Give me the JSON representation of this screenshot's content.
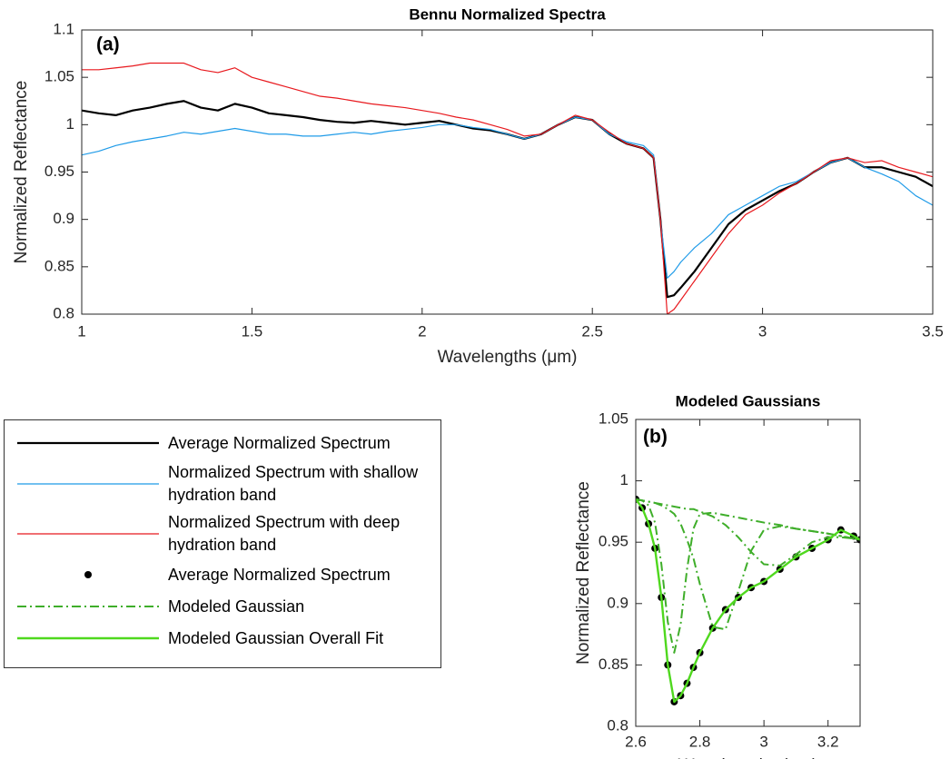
{
  "chart_data": [
    {
      "type": "line",
      "title": "Bennu Normalized Spectra",
      "annotation": "(a)",
      "x_label": "Wavelengths (μm)",
      "y_label": "Normalized Reflectance",
      "xlim": [
        1,
        3.5
      ],
      "ylim": [
        0.8,
        1.1
      ],
      "xticks": [
        1,
        1.5,
        2,
        2.5,
        3,
        3.5
      ],
      "yticks": [
        0.8,
        0.85,
        0.9,
        0.95,
        1,
        1.05,
        1.1
      ],
      "x": [
        1.0,
        1.05,
        1.1,
        1.15,
        1.2,
        1.25,
        1.3,
        1.35,
        1.4,
        1.45,
        1.5,
        1.55,
        1.6,
        1.65,
        1.7,
        1.75,
        1.8,
        1.85,
        1.9,
        1.95,
        2.0,
        2.05,
        2.1,
        2.15,
        2.2,
        2.25,
        2.3,
        2.35,
        2.4,
        2.45,
        2.5,
        2.55,
        2.6,
        2.65,
        2.68,
        2.7,
        2.72,
        2.74,
        2.76,
        2.8,
        2.85,
        2.9,
        2.95,
        3.0,
        3.05,
        3.1,
        3.15,
        3.2,
        3.25,
        3.3,
        3.35,
        3.4,
        3.45,
        3.5
      ],
      "series": [
        {
          "name": "Average Normalized Spectrum",
          "color": "#000000",
          "style": "line",
          "width": 2.2,
          "values": [
            1.015,
            1.012,
            1.01,
            1.015,
            1.018,
            1.022,
            1.025,
            1.018,
            1.015,
            1.022,
            1.018,
            1.012,
            1.01,
            1.008,
            1.005,
            1.003,
            1.002,
            1.004,
            1.002,
            1.0,
            1.002,
            1.004,
            1.0,
            0.996,
            0.994,
            0.99,
            0.985,
            0.99,
            1.0,
            1.008,
            1.005,
            0.99,
            0.98,
            0.975,
            0.965,
            0.9,
            0.818,
            0.82,
            0.828,
            0.845,
            0.87,
            0.895,
            0.91,
            0.92,
            0.93,
            0.938,
            0.95,
            0.96,
            0.965,
            0.955,
            0.955,
            0.95,
            0.945,
            0.935
          ]
        },
        {
          "name": "Normalized Spectrum with shallow hydration band",
          "color": "#1f9be8",
          "style": "line",
          "width": 1.2,
          "values": [
            0.968,
            0.972,
            0.978,
            0.982,
            0.985,
            0.988,
            0.992,
            0.99,
            0.993,
            0.996,
            0.993,
            0.99,
            0.99,
            0.988,
            0.988,
            0.99,
            0.992,
            0.99,
            0.993,
            0.995,
            0.997,
            1.0,
            1.0,
            0.997,
            0.995,
            0.99,
            0.985,
            0.99,
            1.0,
            1.008,
            1.005,
            0.99,
            0.982,
            0.978,
            0.968,
            0.9,
            0.838,
            0.845,
            0.855,
            0.87,
            0.885,
            0.905,
            0.915,
            0.925,
            0.935,
            0.94,
            0.95,
            0.96,
            0.965,
            0.955,
            0.948,
            0.94,
            0.925,
            0.915
          ]
        },
        {
          "name": "Normalized Spectrum with deep hydration band",
          "color": "#e8191e",
          "style": "line",
          "width": 1.2,
          "values": [
            1.058,
            1.058,
            1.06,
            1.062,
            1.065,
            1.065,
            1.065,
            1.058,
            1.055,
            1.06,
            1.05,
            1.045,
            1.04,
            1.035,
            1.03,
            1.028,
            1.025,
            1.022,
            1.02,
            1.018,
            1.015,
            1.012,
            1.008,
            1.005,
            1.0,
            0.995,
            0.988,
            0.99,
            1.0,
            1.01,
            1.005,
            0.992,
            0.98,
            0.975,
            0.965,
            0.9,
            0.8,
            0.805,
            0.815,
            0.835,
            0.86,
            0.885,
            0.905,
            0.915,
            0.928,
            0.938,
            0.95,
            0.962,
            0.965,
            0.96,
            0.962,
            0.955,
            0.95,
            0.945
          ]
        }
      ]
    },
    {
      "type": "line",
      "title": "Modeled Gaussians",
      "annotation": "(b)",
      "x_label": "Wavelengths (μm)",
      "y_label": "Normalized Reflectance",
      "xlim": [
        2.6,
        3.3
      ],
      "ylim": [
        0.8,
        1.05
      ],
      "xticks": [
        2.6,
        2.8,
        3,
        3.2
      ],
      "yticks": [
        0.8,
        0.85,
        0.9,
        0.95,
        1,
        1.05
      ],
      "x": [
        2.6,
        2.62,
        2.64,
        2.66,
        2.68,
        2.7,
        2.72,
        2.74,
        2.76,
        2.78,
        2.8,
        2.84,
        2.88,
        2.92,
        2.96,
        3.0,
        3.05,
        3.1,
        3.15,
        3.2,
        3.24,
        3.28,
        3.3
      ],
      "series": [
        {
          "name": "Average Normalized Spectrum",
          "color": "#000000",
          "style": "dots",
          "values": [
            0.985,
            0.978,
            0.965,
            0.945,
            0.905,
            0.85,
            0.82,
            0.825,
            0.835,
            0.848,
            0.86,
            0.88,
            0.895,
            0.905,
            0.913,
            0.918,
            0.928,
            0.938,
            0.945,
            0.952,
            0.96,
            0.955,
            0.952
          ]
        },
        {
          "name": "Modeled Gaussian",
          "color": "#3fae2a",
          "style": "dash-dot",
          "width": 2,
          "values": [
            0.985,
            0.984,
            0.98,
            0.966,
            0.932,
            0.885,
            0.86,
            0.883,
            0.928,
            0.961,
            0.973,
            0.974,
            0.972,
            0.97,
            0.968,
            0.966,
            0.964,
            0.961,
            0.959,
            0.957,
            0.955,
            0.953,
            0.952
          ]
        },
        {
          "color": "#3fae2a",
          "style": "dash-dot",
          "width": 2,
          "values": [
            0.985,
            0.984,
            0.983,
            0.982,
            0.98,
            0.977,
            0.973,
            0.965,
            0.952,
            0.937,
            0.916,
            0.881,
            0.879,
            0.91,
            0.943,
            0.96,
            0.963,
            0.961,
            0.959,
            0.957,
            0.955,
            0.953,
            0.952
          ]
        },
        {
          "color": "#3fae2a",
          "style": "dash-dot",
          "width": 2,
          "values": [
            0.985,
            0.984,
            0.983,
            0.982,
            0.981,
            0.98,
            0.979,
            0.978,
            0.977,
            0.977,
            0.975,
            0.971,
            0.964,
            0.954,
            0.942,
            0.932,
            0.931,
            0.94,
            0.95,
            0.954,
            0.954,
            0.953,
            0.952
          ]
        },
        {
          "name": "Modeled Gaussian Overall Fit",
          "color": "#4fd81e",
          "style": "line",
          "width": 2.4,
          "values": [
            0.985,
            0.978,
            0.965,
            0.945,
            0.905,
            0.85,
            0.82,
            0.825,
            0.835,
            0.848,
            0.86,
            0.88,
            0.895,
            0.905,
            0.913,
            0.918,
            0.928,
            0.938,
            0.945,
            0.952,
            0.96,
            0.955,
            0.952
          ]
        }
      ]
    }
  ]
}
